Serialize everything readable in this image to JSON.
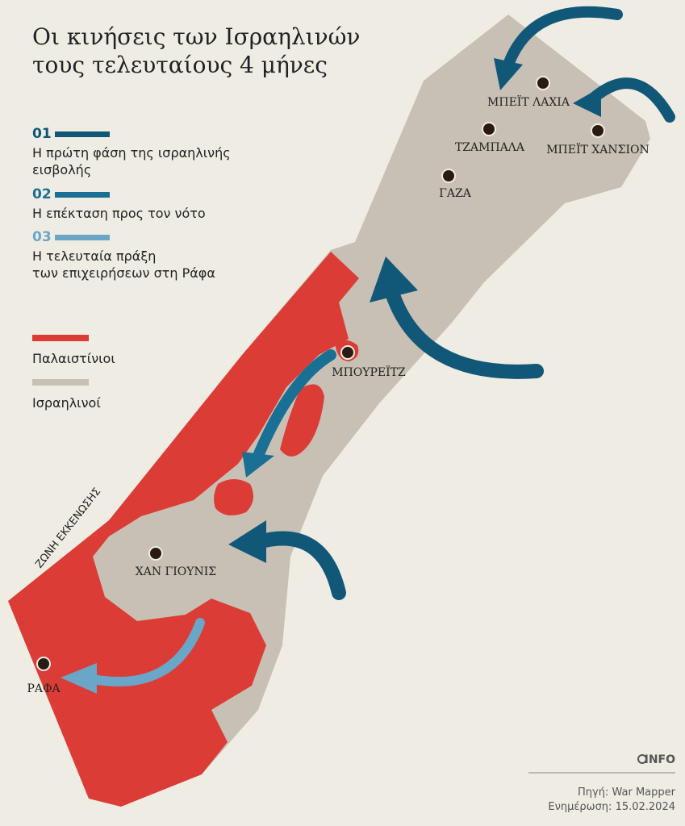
{
  "title": [
    "Οι κινήσεις των Ισραηλινών",
    "τους τελευταίους 4 μήνες"
  ],
  "phases": [
    {
      "number": "01",
      "label": [
        "Η πρώτη φάση της ισραηλινής",
        "εισβολής"
      ]
    },
    {
      "number": "02",
      "label": [
        "Η επέκταση προς τον νότο"
      ]
    },
    {
      "number": "03",
      "label": [
        "Η τελευταία πράξη",
        "των επιχειρήσεων στη Ράφα"
      ]
    }
  ],
  "areas": [
    "Παλαιστίνιοι",
    "Ισραηλινοί"
  ],
  "cities": [
    "ΜΠΕΪΤ ΛΑΧΙΑ",
    "ΤΖΑΜΠΑΛΑ",
    "ΜΠΕΪΤ ΧΑΝΣΙΟΝ",
    "ΓΑΖΑ",
    "ΜΠΟΥΡΕΪΤΖ",
    "ΧΑΝ ΓΙΟΥΝΙΣ",
    "ΡΑΦΑ"
  ],
  "zone": "ΖΩΝΗ ΕΚΚΕΝΩΣΗΣ",
  "brand": "INFO",
  "source": "Πηγή: War Mapper",
  "updated": "Ενημέρωση: 15.02.2024"
}
